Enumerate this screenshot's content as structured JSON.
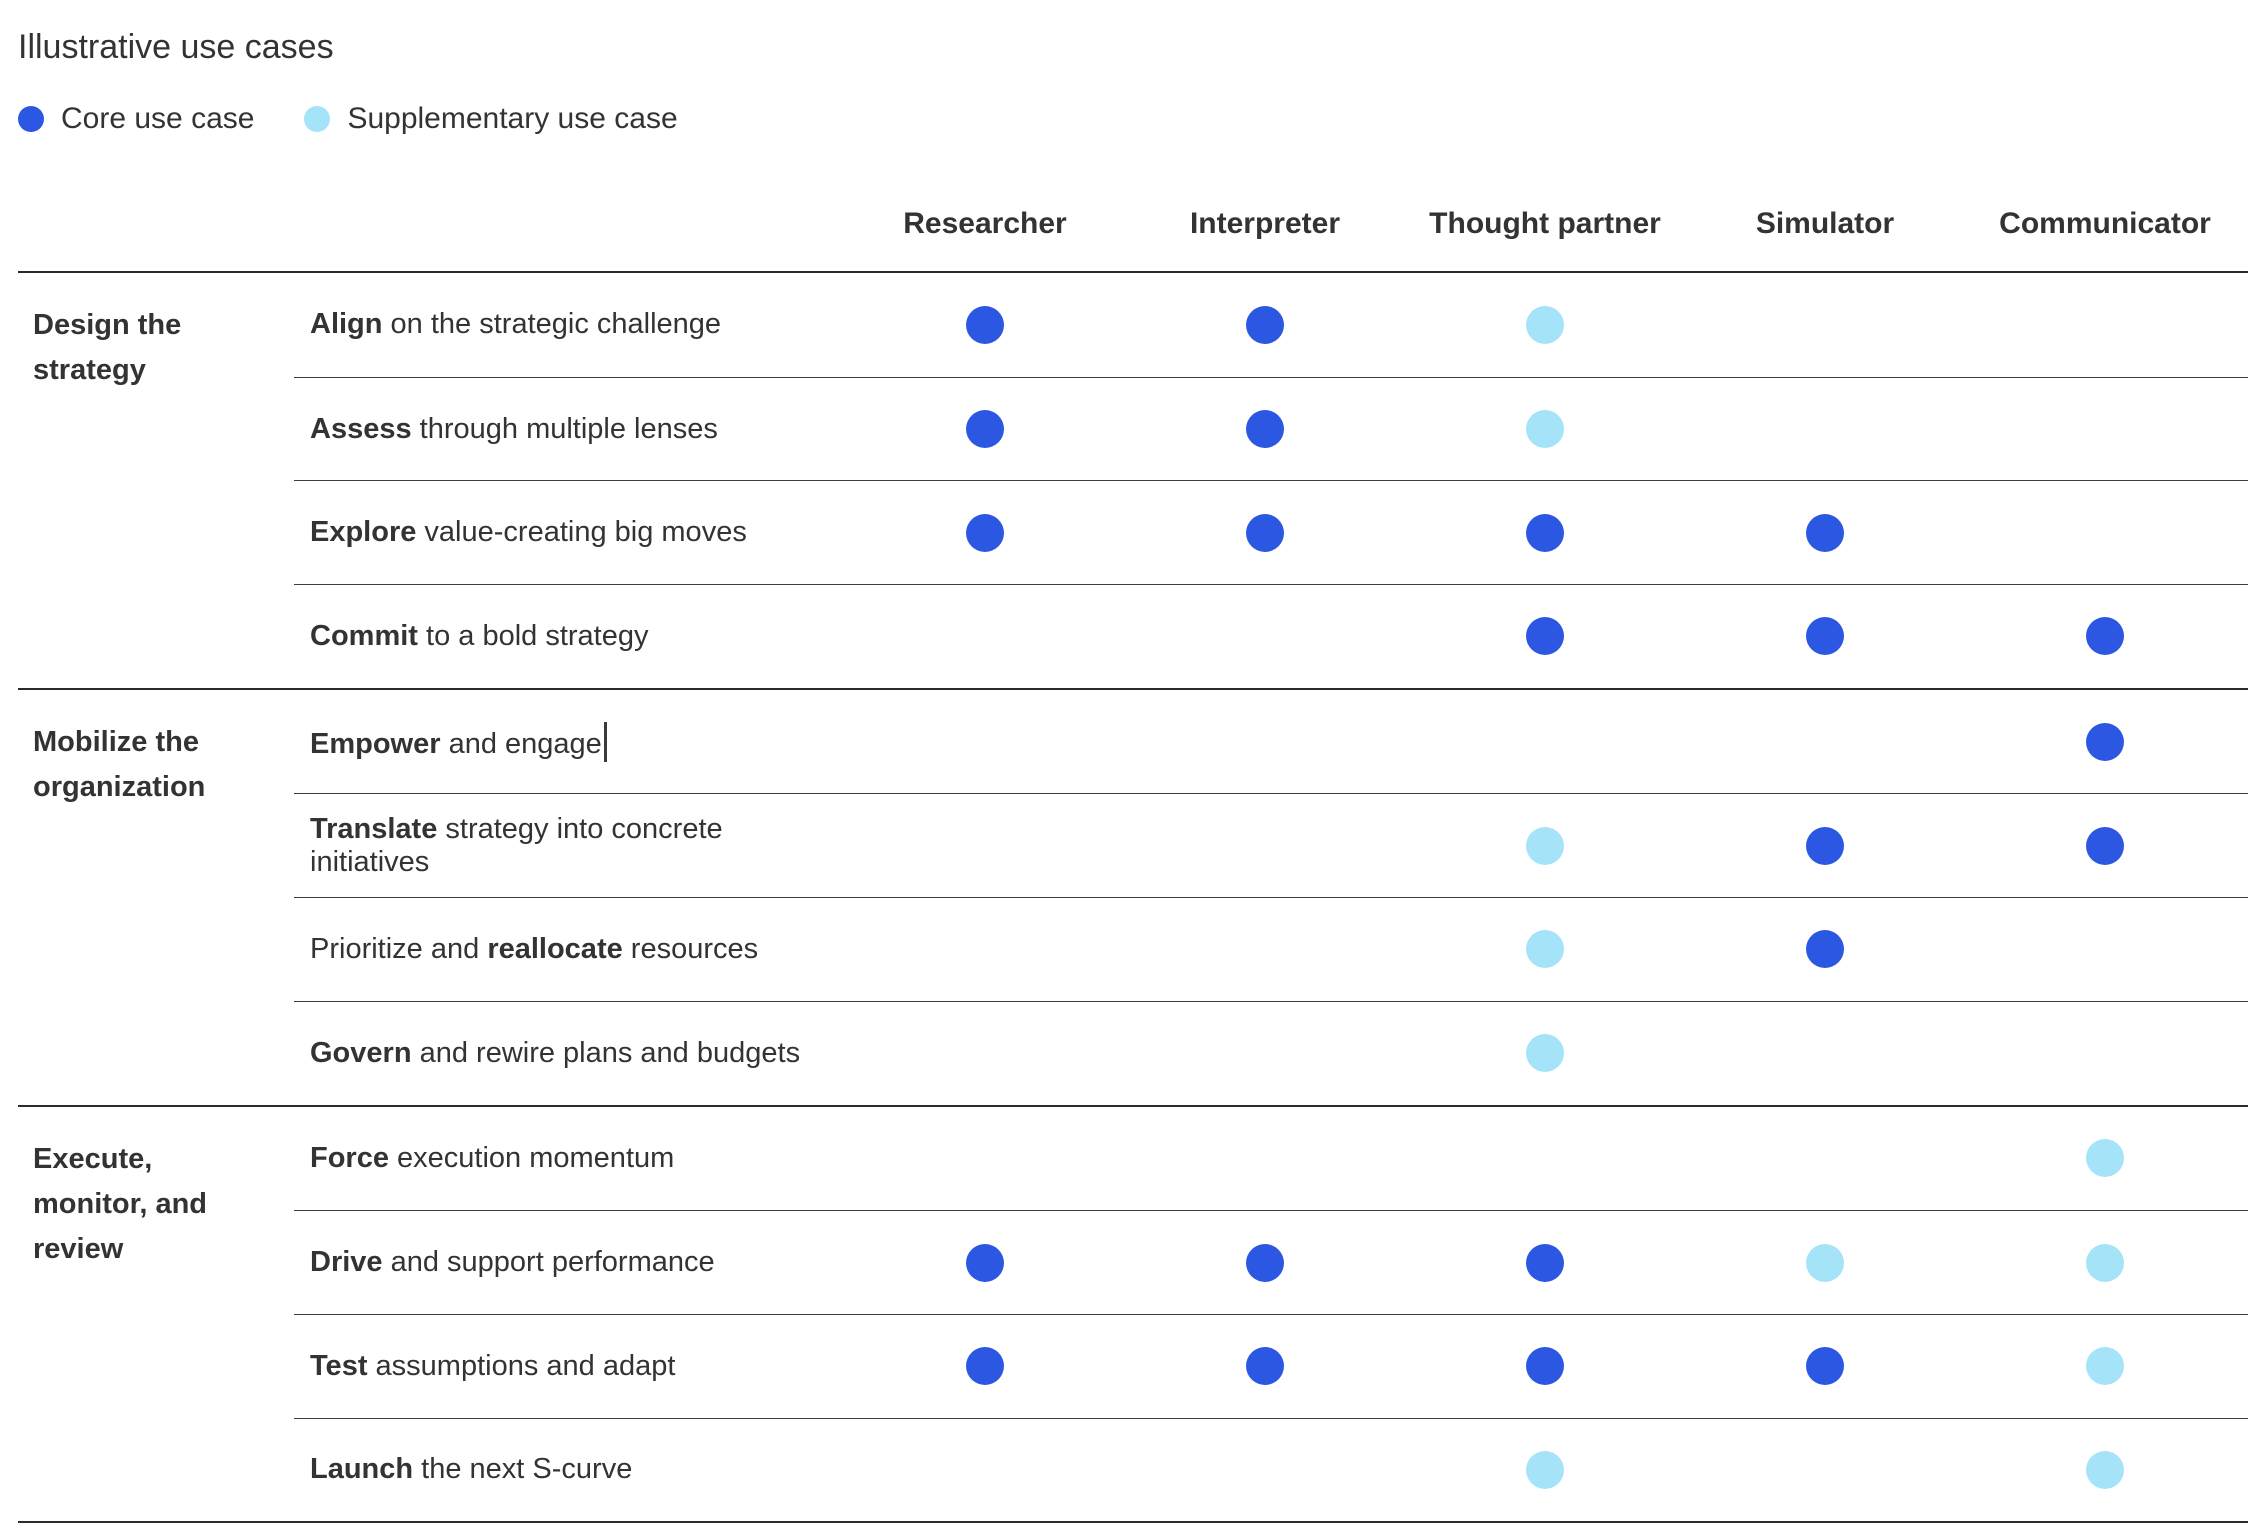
{
  "title": "Illustrative use cases",
  "chart_data": {
    "type": "table",
    "title": "Illustrative use cases",
    "legend": [
      {
        "key": "core",
        "label": "Core use case",
        "color": "#2B57E3"
      },
      {
        "key": "supplementary",
        "label": "Supplementary use case",
        "color": "#A5E4F8"
      }
    ],
    "colors": {
      "core": "#2B57E3",
      "supplementary": "#A5E4F8"
    },
    "columns": [
      "Researcher",
      "Interpreter",
      "Thought partner",
      "Simulator",
      "Communicator"
    ],
    "groups": [
      {
        "label": "Design the strategy",
        "rows": [
          {
            "segments": [
              {
                "text": "Align",
                "bold": true
              },
              {
                "text": " on the strategic challenge",
                "bold": false
              }
            ],
            "values": [
              "core",
              "core",
              "supplementary",
              null,
              null
            ]
          },
          {
            "segments": [
              {
                "text": "Assess",
                "bold": true
              },
              {
                "text": " through multiple lenses",
                "bold": false
              }
            ],
            "values": [
              "core",
              "core",
              "supplementary",
              null,
              null
            ]
          },
          {
            "segments": [
              {
                "text": "Explore",
                "bold": true
              },
              {
                "text": " value-creating big moves",
                "bold": false
              }
            ],
            "values": [
              "core",
              "core",
              "core",
              "core",
              null
            ]
          },
          {
            "segments": [
              {
                "text": "Commit",
                "bold": true
              },
              {
                "text": " to a bold strategy",
                "bold": false
              }
            ],
            "values": [
              null,
              null,
              "core",
              "core",
              "core"
            ]
          }
        ]
      },
      {
        "label": "Mobilize the organization",
        "rows": [
          {
            "segments": [
              {
                "text": "Empower",
                "bold": true
              },
              {
                "text": " and engage",
                "bold": false
              }
            ],
            "caret": true,
            "values": [
              null,
              null,
              null,
              null,
              "core"
            ]
          },
          {
            "segments": [
              {
                "text": "Translate",
                "bold": true
              },
              {
                "text": " strategy into concrete initiatives",
                "bold": false
              }
            ],
            "values": [
              null,
              null,
              "supplementary",
              "core",
              "core"
            ]
          },
          {
            "segments": [
              {
                "text": "Prioritize and ",
                "bold": false
              },
              {
                "text": "reallocate",
                "bold": true
              },
              {
                "text": " resources",
                "bold": false
              }
            ],
            "values": [
              null,
              null,
              "supplementary",
              "core",
              null
            ]
          },
          {
            "segments": [
              {
                "text": "Govern",
                "bold": true
              },
              {
                "text": " and rewire plans and budgets",
                "bold": false
              }
            ],
            "values": [
              null,
              null,
              "supplementary",
              null,
              null
            ]
          }
        ]
      },
      {
        "label": "Execute, monitor, and review",
        "rows": [
          {
            "segments": [
              {
                "text": "Force",
                "bold": true
              },
              {
                "text": " execution momentum",
                "bold": false
              }
            ],
            "values": [
              null,
              null,
              null,
              null,
              "supplementary"
            ]
          },
          {
            "segments": [
              {
                "text": "Drive",
                "bold": true
              },
              {
                "text": " and support performance",
                "bold": false
              }
            ],
            "values": [
              "core",
              "core",
              "core",
              "supplementary",
              "supplementary"
            ]
          },
          {
            "segments": [
              {
                "text": "Test",
                "bold": true
              },
              {
                "text": " assumptions and adapt",
                "bold": false
              }
            ],
            "values": [
              "core",
              "core",
              "core",
              "core",
              "supplementary"
            ]
          },
          {
            "segments": [
              {
                "text": "Launch",
                "bold": true
              },
              {
                "text": " the next S-curve",
                "bold": false
              }
            ],
            "values": [
              null,
              null,
              "supplementary",
              null,
              "supplementary"
            ]
          }
        ]
      }
    ]
  }
}
